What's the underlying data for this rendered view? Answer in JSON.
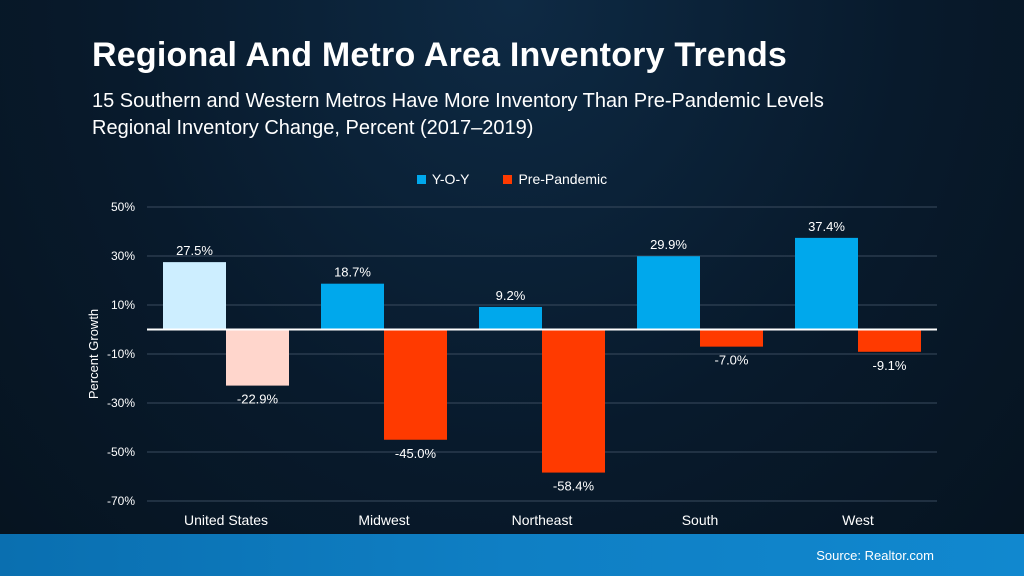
{
  "colors": {
    "yoy": "#00a8ec",
    "yoy_light": "#cdeeff",
    "pre": "#ff3a00",
    "pre_light": "#ffd6cc",
    "grid": "#3a4b5e",
    "zero": "#ffffff"
  },
  "header": {
    "title": "Regional And Metro Area Inventory Trends",
    "subtitle_line1": "15 Southern and Western Metros Have More Inventory Than Pre-Pandemic Levels",
    "subtitle_line2": "Regional Inventory Change, Percent (2017–2019)"
  },
  "footer": {
    "source": "Source: Realtor.com"
  },
  "chart_data": {
    "type": "bar",
    "title": "Regional Inventory Change, Percent (2017–2019)",
    "xlabel": "",
    "ylabel": "Percent Growth",
    "ylim": [
      -70,
      50
    ],
    "yticks": [
      50,
      30,
      10,
      -10,
      -30,
      -50,
      -70
    ],
    "ytick_labels": [
      "50%",
      "30%",
      "10%",
      "-10%",
      "-30%",
      "-50%",
      "-70%"
    ],
    "categories": [
      "United States",
      "Midwest",
      "Northeast",
      "South",
      "West"
    ],
    "series": [
      {
        "name": "Y-O-Y",
        "values": [
          27.5,
          18.7,
          9.2,
          29.9,
          37.4
        ],
        "labels": [
          "27.5%",
          "18.7%",
          "9.2%",
          "29.9%",
          "37.4%"
        ]
      },
      {
        "name": "Pre-Pandemic",
        "values": [
          -22.9,
          -45.0,
          -58.4,
          -7.0,
          -9.1
        ],
        "labels": [
          "-22.9%",
          "-45.0%",
          "-58.4%",
          "-7.0%",
          "-9.1%"
        ]
      }
    ],
    "highlighted_category_lighter": "United States",
    "legend_position": "top-center",
    "grid": true
  }
}
